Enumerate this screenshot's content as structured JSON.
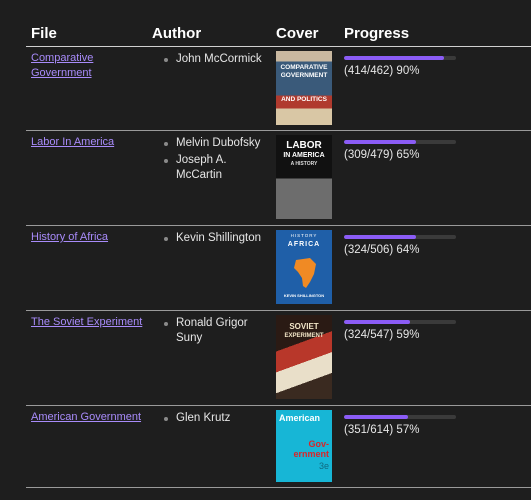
{
  "headers": {
    "file": "File",
    "author": "Author",
    "cover": "Cover",
    "progress": "Progress"
  },
  "rows": [
    {
      "file": "Comparative Government",
      "authors": [
        "John McCormick"
      ],
      "cover": {
        "lines": [
          "COMPARATIVE",
          "GOVERNMENT",
          "AND POLITICS"
        ],
        "icon": "comparative-government-cover"
      },
      "progress": {
        "fraction": 0.896,
        "text": "(414/462) 90%"
      }
    },
    {
      "file": "Labor In America",
      "authors": [
        "Melvin Dubofsky",
        "Joseph A. McCartin"
      ],
      "cover": {
        "lines": [
          "LABOR",
          "IN AMERICA",
          "A HISTORY"
        ],
        "icon": "labor-in-america-cover"
      },
      "progress": {
        "fraction": 0.645,
        "text": "(309/479) 65%"
      }
    },
    {
      "file": "History of Africa",
      "authors": [
        "Kevin Shillington"
      ],
      "cover": {
        "lines": [
          "HISTORY",
          "AFRICA",
          "KEVIN SHILLINGTON"
        ],
        "icon": "history-of-africa-cover"
      },
      "progress": {
        "fraction": 0.64,
        "text": "(324/506) 64%"
      }
    },
    {
      "file": "The Soviet Experiment",
      "authors": [
        "Ronald Grigor Suny"
      ],
      "cover": {
        "lines": [
          "SOVIET",
          "EXPERIMENT"
        ],
        "icon": "soviet-experiment-cover"
      },
      "progress": {
        "fraction": 0.592,
        "text": "(324/547) 59%"
      }
    },
    {
      "file": "American Government",
      "authors": [
        "Glen Krutz"
      ],
      "cover": {
        "lines": [
          "American",
          "Gov-",
          "ernment",
          "3e"
        ],
        "icon": "american-government-cover"
      },
      "progress": {
        "fraction": 0.572,
        "text": "(351/614) 57%"
      }
    }
  ],
  "colors": {
    "background": "#1e1e1e",
    "link": "#a88bfa",
    "progress_fill": "#8b5cf6",
    "progress_track": "#3a3a3a"
  }
}
